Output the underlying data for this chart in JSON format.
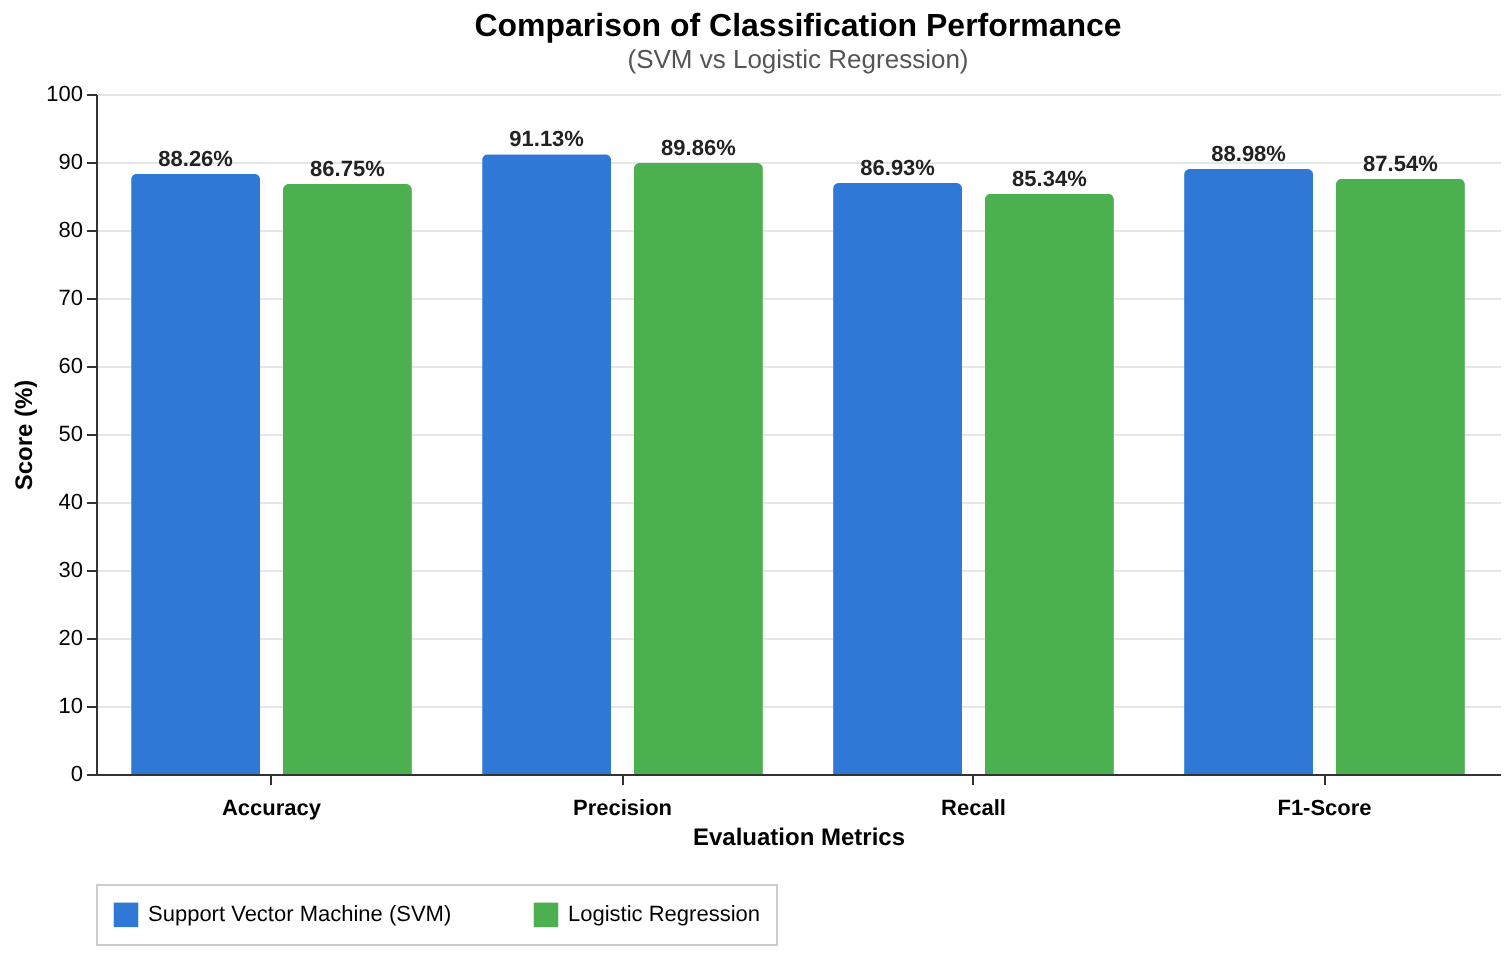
{
  "chart_data": {
    "type": "bar",
    "title": "Comparison of Classification Performance",
    "subtitle": "(SVM vs Logistic Regression)",
    "xlabel": "Evaluation Metrics",
    "ylabel": "Score (%)",
    "categories": [
      "Accuracy",
      "Precision",
      "Recall",
      "F1-Score"
    ],
    "series": [
      {
        "name": "Support Vector Machine (SVM)",
        "color": "#2f78d6",
        "values": [
          88.26,
          91.13,
          86.93,
          88.98
        ],
        "value_labels": [
          "88.26%",
          "91.13%",
          "86.93%",
          "88.98%"
        ]
      },
      {
        "name": "Logistic Regression",
        "color": "#4caf50",
        "values": [
          86.75,
          89.86,
          85.34,
          87.54
        ],
        "value_labels": [
          "86.75%",
          "89.86%",
          "85.34%",
          "87.54%"
        ]
      }
    ],
    "ylim": [
      0,
      100
    ],
    "yticks": [
      0,
      10,
      20,
      30,
      40,
      50,
      60,
      70,
      80,
      90,
      100
    ],
    "grid": "y",
    "legend": "bottom"
  }
}
